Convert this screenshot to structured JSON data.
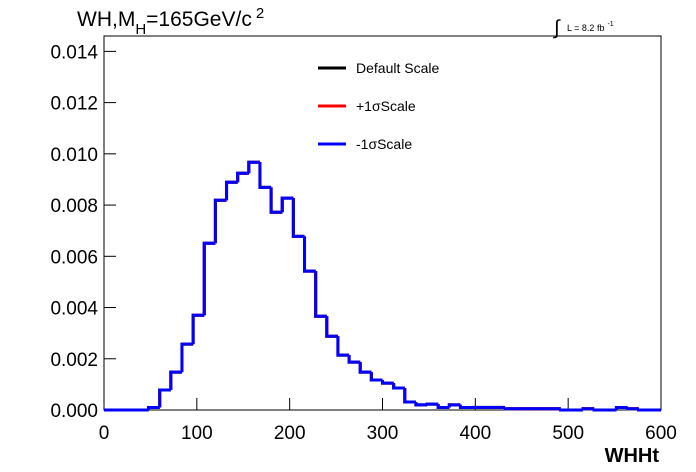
{
  "chart_data": {
    "type": "histogram",
    "title": {
      "main": "WH,M",
      "sub": "H",
      "rest": "=165GeV/c",
      "sup": "2"
    },
    "annotation": {
      "integral": "∫",
      "text": "L = 8.2 fb",
      "sup": "-1"
    },
    "x_label": "WHHt",
    "bins": [
      0,
      12,
      24,
      36,
      48,
      60,
      72,
      84,
      96,
      108,
      120,
      132,
      144,
      156,
      168,
      180,
      192,
      204,
      216,
      228,
      240,
      252,
      264,
      276,
      288,
      300,
      312,
      324,
      336,
      348,
      360,
      372,
      384,
      396,
      408,
      420,
      432,
      444,
      456,
      468,
      480,
      492,
      504,
      516,
      528,
      540,
      552,
      564,
      576,
      588,
      600
    ],
    "series": [
      {
        "name": "Default Scale",
        "color": "#000000",
        "values": [
          0,
          0,
          0,
          0,
          0.0001,
          0.00078,
          0.00148,
          0.00257,
          0.0037,
          0.00651,
          0.00819,
          0.00889,
          0.00924,
          0.00967,
          0.00869,
          0.00772,
          0.00827,
          0.00678,
          0.00542,
          0.00366,
          0.00288,
          0.00214,
          0.00187,
          0.00148,
          0.00117,
          0.00105,
          0.00086,
          0.00031,
          0.0002,
          0.00023,
          0.0001,
          0.0002,
          0.0001,
          0.0001,
          0.0001,
          0.0001,
          5e-05,
          5e-05,
          5e-05,
          5e-05,
          5e-05,
          0,
          0,
          5e-05,
          0,
          0,
          0.0001,
          5e-05,
          0,
          0
        ]
      },
      {
        "name": "+1σScale",
        "color": "#ff0000",
        "values": [
          0,
          0,
          0,
          0,
          0.0001,
          0.00078,
          0.00148,
          0.00257,
          0.0037,
          0.00651,
          0.00819,
          0.00889,
          0.00924,
          0.00967,
          0.00869,
          0.00772,
          0.00827,
          0.00678,
          0.00542,
          0.00366,
          0.00288,
          0.00214,
          0.00187,
          0.00148,
          0.00117,
          0.00105,
          0.00086,
          0.00031,
          0.0002,
          0.00023,
          0.0001,
          0.0002,
          0.0001,
          0.0001,
          0.0001,
          0.0001,
          5e-05,
          5e-05,
          5e-05,
          5e-05,
          5e-05,
          0,
          0,
          5e-05,
          0,
          0,
          0.0001,
          5e-05,
          0,
          0
        ]
      },
      {
        "name": "-1σScale",
        "color": "#0000ff",
        "values": [
          0,
          0,
          0,
          0,
          0.0001,
          0.00078,
          0.00148,
          0.00257,
          0.0037,
          0.00651,
          0.00819,
          0.00889,
          0.00924,
          0.00967,
          0.00869,
          0.00772,
          0.00827,
          0.00678,
          0.00542,
          0.00366,
          0.00288,
          0.00214,
          0.00187,
          0.00148,
          0.00117,
          0.00105,
          0.00086,
          0.00031,
          0.0002,
          0.00023,
          0.0001,
          0.0002,
          0.0001,
          0.0001,
          0.0001,
          0.0001,
          5e-05,
          5e-05,
          5e-05,
          5e-05,
          5e-05,
          0,
          0,
          5e-05,
          0,
          0,
          0.0001,
          5e-05,
          0,
          0
        ]
      }
    ],
    "xlim": [
      0,
      600
    ],
    "xticks": [
      0,
      100,
      200,
      300,
      400,
      500,
      600
    ],
    "ylim": [
      0,
      0.0146
    ],
    "yticks": [
      {
        "value": 0,
        "label": "0.000"
      },
      {
        "value": 0.002,
        "label": "0.002"
      },
      {
        "value": 0.004,
        "label": "0.004"
      },
      {
        "value": 0.006,
        "label": "0.006"
      },
      {
        "value": 0.008,
        "label": "0.008"
      },
      {
        "value": 0.01,
        "label": "0.010"
      },
      {
        "value": 0.012,
        "label": "0.012"
      },
      {
        "value": 0.014,
        "label": "0.014"
      }
    ]
  }
}
